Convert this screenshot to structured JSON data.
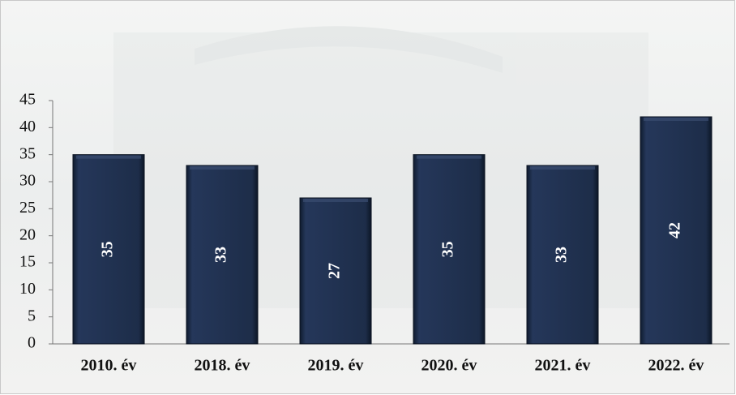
{
  "chart_data": {
    "type": "bar",
    "categories": [
      "2010. év",
      "2018. év",
      "2019. év",
      "2020. év",
      "2021. év",
      "2022. év"
    ],
    "values": [
      35,
      33,
      27,
      35,
      33,
      42
    ],
    "color": "#1b2a44",
    "ylim": [
      0,
      45
    ],
    "yticks": [
      0,
      5,
      10,
      15,
      20,
      25,
      30,
      35,
      40,
      45
    ]
  }
}
